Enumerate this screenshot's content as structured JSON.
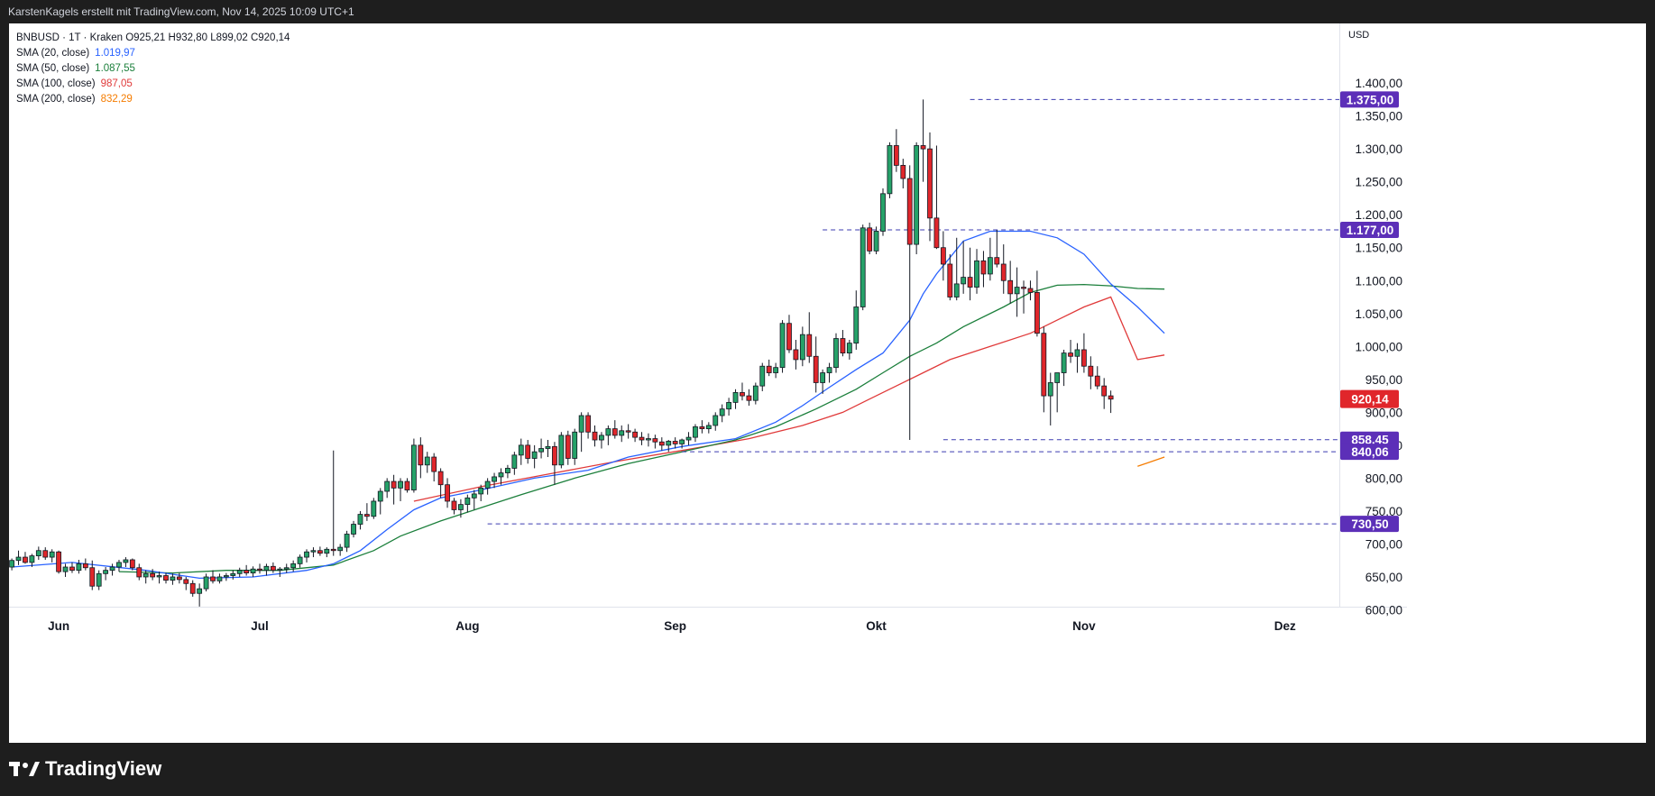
{
  "header": {
    "text": "KarstenKagels erstellt mit TradingView.com, Nov 14, 2025 10:09 UTC+1"
  },
  "legend": {
    "symbol_line": "BNBUSD · 1T · Kraken  O925,21  H932,80  L899,02  C920,14",
    "indicators": [
      {
        "label": "SMA (20, close)",
        "value": "1.019,97",
        "color": "#2962ff"
      },
      {
        "label": "SMA (50, close)",
        "value": "1.087,55",
        "color": "#1b7f3b"
      },
      {
        "label": "SMA (100, close)",
        "value": "987,05",
        "color": "#e03a3a"
      },
      {
        "label": "SMA (200, close)",
        "value": "832,29",
        "color": "#f57c00"
      }
    ]
  },
  "footer": {
    "brand": "TradingView"
  },
  "chart_data": {
    "type": "candlestick",
    "currency_label": "USD",
    "y_ticks": [
      {
        "v": 600,
        "label": "600,00"
      },
      {
        "v": 650,
        "label": "650,00"
      },
      {
        "v": 700,
        "label": "700,00"
      },
      {
        "v": 750,
        "label": "750,00"
      },
      {
        "v": 800,
        "label": "800,00"
      },
      {
        "v": 850,
        "label": "850,00"
      },
      {
        "v": 900,
        "label": "900,00"
      },
      {
        "v": 950,
        "label": "950,00"
      },
      {
        "v": 1000,
        "label": "1.000,00"
      },
      {
        "v": 1050,
        "label": "1.050,00"
      },
      {
        "v": 1100,
        "label": "1.100,00"
      },
      {
        "v": 1150,
        "label": "1.150,00"
      },
      {
        "v": 1200,
        "label": "1.200,00"
      },
      {
        "v": 1250,
        "label": "1.250,00"
      },
      {
        "v": 1300,
        "label": "1.300,00"
      },
      {
        "v": 1350,
        "label": "1.350,00"
      },
      {
        "v": 1400,
        "label": "1.400,00"
      }
    ],
    "x_ticks": [
      {
        "day": 7,
        "label": "Jun"
      },
      {
        "day": 37,
        "label": "Jul"
      },
      {
        "day": 68,
        "label": "Aug"
      },
      {
        "day": 99,
        "label": "Sep"
      },
      {
        "day": 129,
        "label": "Okt"
      },
      {
        "day": 160,
        "label": "Nov"
      },
      {
        "day": 190,
        "label": "Dez"
      }
    ],
    "horizontal_levels": [
      {
        "label": "1.375,00",
        "price": 1375,
        "start_day": 143
      },
      {
        "label": "1.177,00",
        "price": 1177,
        "start_day": 121
      },
      {
        "label": "858,45",
        "price": 858.45,
        "start_day": 139
      },
      {
        "label": "840,06",
        "price": 840.06,
        "start_day": 100
      },
      {
        "label": "730,50",
        "price": 730.5,
        "start_day": 71
      }
    ],
    "last_price": {
      "label": "920,14",
      "price": 920.14
    },
    "ohlc_days": [
      0,
      195
    ],
    "ohlc_note": "open,high,low,close per daily candle starting 2025-05-31",
    "ohlc": [
      [
        665,
        678,
        660,
        675
      ],
      [
        675,
        690,
        668,
        680
      ],
      [
        680,
        688,
        670,
        672
      ],
      [
        672,
        685,
        665,
        682
      ],
      [
        682,
        696,
        676,
        690
      ],
      [
        690,
        695,
        676,
        680
      ],
      [
        680,
        692,
        672,
        688
      ],
      [
        688,
        690,
        655,
        658
      ],
      [
        658,
        670,
        650,
        665
      ],
      [
        665,
        672,
        656,
        660
      ],
      [
        660,
        676,
        655,
        670
      ],
      [
        670,
        678,
        660,
        664
      ],
      [
        664,
        675,
        630,
        636
      ],
      [
        636,
        660,
        630,
        655
      ],
      [
        655,
        665,
        645,
        660
      ],
      [
        660,
        670,
        652,
        665
      ],
      [
        665,
        676,
        658,
        672
      ],
      [
        672,
        680,
        665,
        676
      ],
      [
        676,
        678,
        660,
        664
      ],
      [
        664,
        670,
        645,
        650
      ],
      [
        650,
        660,
        640,
        655
      ],
      [
        655,
        662,
        645,
        650
      ],
      [
        650,
        658,
        640,
        652
      ],
      [
        652,
        656,
        640,
        645
      ],
      [
        645,
        655,
        638,
        650
      ],
      [
        650,
        656,
        640,
        646
      ],
      [
        646,
        650,
        630,
        640
      ],
      [
        640,
        645,
        620,
        625
      ],
      [
        625,
        640,
        605,
        632
      ],
      [
        632,
        655,
        628,
        650
      ],
      [
        650,
        660,
        640,
        644
      ],
      [
        644,
        655,
        640,
        650
      ],
      [
        650,
        656,
        644,
        652
      ],
      [
        652,
        660,
        646,
        655
      ],
      [
        655,
        664,
        650,
        660
      ],
      [
        660,
        668,
        652,
        656
      ],
      [
        656,
        666,
        650,
        662
      ],
      [
        662,
        670,
        655,
        660
      ],
      [
        660,
        670,
        652,
        666
      ],
      [
        666,
        672,
        656,
        660
      ],
      [
        660,
        665,
        650,
        662
      ],
      [
        662,
        670,
        656,
        664
      ],
      [
        664,
        675,
        658,
        670
      ],
      [
        670,
        684,
        664,
        680
      ],
      [
        680,
        692,
        672,
        688
      ],
      [
        688,
        695,
        680,
        690
      ],
      [
        690,
        696,
        682,
        686
      ],
      [
        686,
        695,
        680,
        692
      ],
      [
        692,
        842,
        682,
        690
      ],
      [
        690,
        700,
        682,
        695
      ],
      [
        695,
        720,
        688,
        715
      ],
      [
        715,
        735,
        710,
        730
      ],
      [
        730,
        750,
        722,
        745
      ],
      [
        745,
        762,
        735,
        742
      ],
      [
        742,
        770,
        738,
        765
      ],
      [
        765,
        785,
        745,
        780
      ],
      [
        780,
        800,
        770,
        795
      ],
      [
        795,
        805,
        760,
        785
      ],
      [
        785,
        800,
        765,
        795
      ],
      [
        795,
        800,
        778,
        782
      ],
      [
        782,
        860,
        778,
        850
      ],
      [
        850,
        862,
        800,
        820
      ],
      [
        820,
        840,
        808,
        832
      ],
      [
        832,
        838,
        795,
        810
      ],
      [
        810,
        815,
        770,
        790
      ],
      [
        790,
        800,
        755,
        765
      ],
      [
        765,
        770,
        745,
        752
      ],
      [
        752,
        768,
        740,
        760
      ],
      [
        760,
        775,
        748,
        770
      ],
      [
        770,
        782,
        752,
        776
      ],
      [
        776,
        790,
        765,
        785
      ],
      [
        785,
        800,
        775,
        795
      ],
      [
        795,
        808,
        785,
        802
      ],
      [
        802,
        815,
        790,
        808
      ],
      [
        808,
        820,
        800,
        815
      ],
      [
        815,
        840,
        805,
        835
      ],
      [
        835,
        860,
        820,
        850
      ],
      [
        850,
        858,
        822,
        830
      ],
      [
        830,
        850,
        815,
        840
      ],
      [
        840,
        860,
        830,
        845
      ],
      [
        845,
        858,
        832,
        848
      ],
      [
        848,
        855,
        790,
        820
      ],
      [
        820,
        870,
        815,
        865
      ],
      [
        865,
        872,
        820,
        830
      ],
      [
        830,
        875,
        820,
        870
      ],
      [
        870,
        900,
        840,
        895
      ],
      [
        895,
        900,
        860,
        870
      ],
      [
        870,
        880,
        848,
        858
      ],
      [
        858,
        870,
        845,
        865
      ],
      [
        865,
        880,
        850,
        875
      ],
      [
        875,
        888,
        860,
        865
      ],
      [
        865,
        880,
        855,
        872
      ],
      [
        872,
        882,
        860,
        870
      ],
      [
        870,
        875,
        855,
        862
      ],
      [
        862,
        870,
        850,
        858
      ],
      [
        858,
        868,
        848,
        860
      ],
      [
        860,
        866,
        845,
        855
      ],
      [
        855,
        862,
        842,
        850
      ],
      [
        850,
        858,
        840,
        856
      ],
      [
        856,
        862,
        845,
        852
      ],
      [
        852,
        860,
        845,
        858
      ],
      [
        858,
        870,
        850,
        862
      ],
      [
        862,
        882,
        855,
        878
      ],
      [
        878,
        888,
        868,
        875
      ],
      [
        875,
        885,
        868,
        880
      ],
      [
        880,
        900,
        872,
        895
      ],
      [
        895,
        912,
        885,
        905
      ],
      [
        905,
        922,
        895,
        915
      ],
      [
        915,
        935,
        905,
        930
      ],
      [
        930,
        945,
        918,
        925
      ],
      [
        925,
        935,
        910,
        918
      ],
      [
        918,
        945,
        912,
        940
      ],
      [
        940,
        975,
        932,
        970
      ],
      [
        970,
        980,
        955,
        960
      ],
      [
        960,
        975,
        952,
        968
      ],
      [
        968,
        1040,
        960,
        1035
      ],
      [
        1035,
        1048,
        990,
        995
      ],
      [
        995,
        1010,
        965,
        980
      ],
      [
        980,
        1030,
        970,
        1018
      ],
      [
        1018,
        1052,
        975,
        985
      ],
      [
        985,
        1015,
        930,
        945
      ],
      [
        945,
        965,
        928,
        960
      ],
      [
        960,
        975,
        945,
        968
      ],
      [
        968,
        1020,
        960,
        1012
      ],
      [
        1012,
        1025,
        985,
        990
      ],
      [
        990,
        1010,
        980,
        1005
      ],
      [
        1005,
        1085,
        995,
        1060
      ],
      [
        1060,
        1185,
        1055,
        1180
      ],
      [
        1180,
        1188,
        1140,
        1145
      ],
      [
        1145,
        1182,
        1140,
        1175
      ],
      [
        1175,
        1240,
        1168,
        1232
      ],
      [
        1232,
        1310,
        1225,
        1305
      ],
      [
        1305,
        1330,
        1265,
        1275
      ],
      [
        1275,
        1285,
        1240,
        1255
      ],
      [
        1255,
        1275,
        858,
        1155
      ],
      [
        1155,
        1310,
        1140,
        1305
      ],
      [
        1305,
        1375,
        1250,
        1300
      ],
      [
        1300,
        1325,
        1160,
        1195
      ],
      [
        1195,
        1305,
        1148,
        1150
      ],
      [
        1150,
        1175,
        1100,
        1125
      ],
      [
        1125,
        1140,
        1070,
        1075
      ],
      [
        1075,
        1165,
        1070,
        1095
      ],
      [
        1095,
        1160,
        1080,
        1105
      ],
      [
        1105,
        1150,
        1070,
        1090
      ],
      [
        1090,
        1148,
        1080,
        1130
      ],
      [
        1130,
        1145,
        1090,
        1110
      ],
      [
        1110,
        1165,
        1100,
        1135
      ],
      [
        1135,
        1177,
        1120,
        1125
      ],
      [
        1125,
        1155,
        1080,
        1100
      ],
      [
        1100,
        1130,
        1065,
        1080
      ],
      [
        1080,
        1120,
        1045,
        1090
      ],
      [
        1090,
        1100,
        1050,
        1088
      ],
      [
        1088,
        1100,
        1070,
        1082
      ],
      [
        1082,
        1115,
        1015,
        1020
      ],
      [
        1020,
        1030,
        900,
        925
      ],
      [
        925,
        960,
        880,
        945
      ],
      [
        945,
        960,
        900,
        960
      ],
      [
        960,
        995,
        940,
        990
      ],
      [
        990,
        1010,
        975,
        985
      ],
      [
        985,
        1005,
        960,
        995
      ],
      [
        995,
        1020,
        960,
        970
      ],
      [
        970,
        985,
        935,
        955
      ],
      [
        955,
        970,
        935,
        940
      ],
      [
        940,
        952,
        905,
        925
      ],
      [
        925,
        933,
        899,
        920
      ]
    ],
    "sma20": [
      [
        0,
        665
      ],
      [
        9,
        672
      ],
      [
        20,
        660
      ],
      [
        28,
        648
      ],
      [
        36,
        650
      ],
      [
        44,
        660
      ],
      [
        48,
        670
      ],
      [
        52,
        690
      ],
      [
        56,
        722
      ],
      [
        60,
        752
      ],
      [
        64,
        770
      ],
      [
        70,
        782
      ],
      [
        78,
        800
      ],
      [
        86,
        812
      ],
      [
        92,
        832
      ],
      [
        100,
        848
      ],
      [
        108,
        860
      ],
      [
        114,
        885
      ],
      [
        118,
        910
      ],
      [
        122,
        938
      ],
      [
        126,
        965
      ],
      [
        130,
        990
      ],
      [
        134,
        1040
      ],
      [
        136,
        1080
      ],
      [
        138,
        1110
      ],
      [
        140,
        1135
      ],
      [
        142,
        1160
      ],
      [
        146,
        1175
      ],
      [
        152,
        1175
      ],
      [
        156,
        1165
      ],
      [
        160,
        1140
      ],
      [
        164,
        1095
      ],
      [
        168,
        1060
      ],
      [
        170,
        1040
      ],
      [
        172,
        1020
      ]
    ],
    "sma50": [
      [
        16,
        658
      ],
      [
        24,
        656
      ],
      [
        32,
        660
      ],
      [
        40,
        660
      ],
      [
        48,
        668
      ],
      [
        54,
        690
      ],
      [
        58,
        712
      ],
      [
        64,
        735
      ],
      [
        70,
        755
      ],
      [
        76,
        775
      ],
      [
        84,
        800
      ],
      [
        92,
        822
      ],
      [
        100,
        840
      ],
      [
        108,
        858
      ],
      [
        114,
        878
      ],
      [
        120,
        905
      ],
      [
        126,
        935
      ],
      [
        130,
        960
      ],
      [
        134,
        985
      ],
      [
        138,
        1005
      ],
      [
        142,
        1030
      ],
      [
        148,
        1060
      ],
      [
        152,
        1082
      ],
      [
        156,
        1093
      ],
      [
        160,
        1094
      ],
      [
        164,
        1092
      ],
      [
        168,
        1088
      ],
      [
        172,
        1087
      ]
    ],
    "sma100": [
      [
        60,
        765
      ],
      [
        70,
        787
      ],
      [
        80,
        806
      ],
      [
        90,
        825
      ],
      [
        100,
        842
      ],
      [
        110,
        860
      ],
      [
        118,
        880
      ],
      [
        124,
        900
      ],
      [
        128,
        920
      ],
      [
        132,
        940
      ],
      [
        136,
        960
      ],
      [
        140,
        980
      ],
      [
        146,
        1000
      ],
      [
        152,
        1020
      ],
      [
        156,
        1040
      ],
      [
        160,
        1060
      ],
      [
        164,
        1075
      ],
      [
        168,
        980
      ],
      [
        172,
        987
      ]
    ],
    "sma200": [
      [
        168,
        818
      ],
      [
        172,
        832
      ]
    ]
  }
}
